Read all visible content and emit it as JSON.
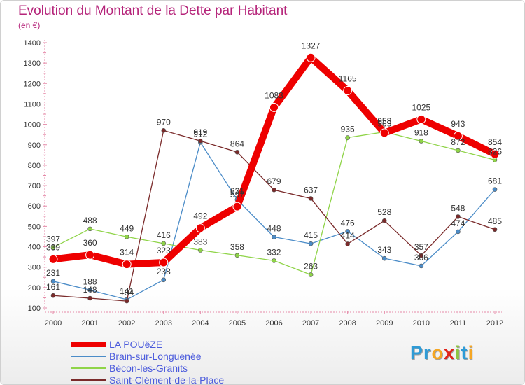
{
  "chart_data": {
    "type": "line",
    "title": "Evolution du Montant de la Dette par Habitant",
    "subtitle": "(en €)",
    "x": [
      "2000",
      "2001",
      "2002",
      "2003",
      "2004",
      "2005",
      "2006",
      "2007",
      "2008",
      "2009",
      "2010",
      "2011",
      "2012"
    ],
    "ylim": [
      100,
      1400
    ],
    "yticks": [
      100,
      200,
      300,
      400,
      500,
      600,
      700,
      800,
      900,
      1000,
      1100,
      1200,
      1300,
      1400
    ],
    "grid": false,
    "legend_position": "bottom-left",
    "series": [
      {
        "name": "Brain-sur-Longuenée",
        "color": "#4b8cc8",
        "values": [
          231,
          188,
          141,
          238,
          912,
          631,
          448,
          415,
          476,
          343,
          306,
          474,
          681
        ],
        "labels": [
          "231",
          "188",
          "141",
          "238",
          "912",
          "631",
          "448",
          "415",
          "476",
          "343",
          "306",
          "474",
          "681"
        ]
      },
      {
        "name": "Bécon-les-Granits",
        "color": "#8fd448",
        "values": [
          397,
          488,
          449,
          416,
          383,
          358,
          332,
          263,
          935,
          963,
          918,
          872,
          826
        ],
        "labels": [
          "397",
          "488",
          "449",
          "416",
          "383",
          "358",
          "332",
          "263",
          "935",
          "963",
          "918",
          "872",
          "826"
        ]
      },
      {
        "name": "Saint-Clément-de-la-Place",
        "color": "#7a2a2a",
        "values": [
          161,
          148,
          134,
          970,
          919,
          864,
          679,
          637,
          414,
          528,
          357,
          548,
          485
        ],
        "labels": [
          "161",
          "148",
          "134",
          "970",
          "919",
          "864",
          "679",
          "637",
          "414",
          "528",
          "357",
          "548",
          "485"
        ]
      },
      {
        "name": "LA POUëZE",
        "color": "#ee0000",
        "values": [
          339,
          360,
          314,
          323,
          492,
          597,
          1083,
          1327,
          1165,
          958,
          1025,
          943,
          854
        ],
        "labels": [
          "339",
          "360",
          "314",
          "323",
          "492",
          "597",
          "1083",
          "1327",
          "1165",
          "958",
          "1025",
          "943",
          "854"
        ]
      }
    ]
  },
  "legend_order": [
    3,
    0,
    1,
    2
  ],
  "brand": {
    "letters": [
      "P",
      "r",
      "o",
      "x",
      "i",
      "t",
      "i"
    ],
    "colors": [
      "#2f9bd6",
      "#2f9bd6",
      "#f5a623",
      "#e2231a",
      "#8cc63f",
      "#2f9bd6",
      "#f5a623"
    ]
  }
}
